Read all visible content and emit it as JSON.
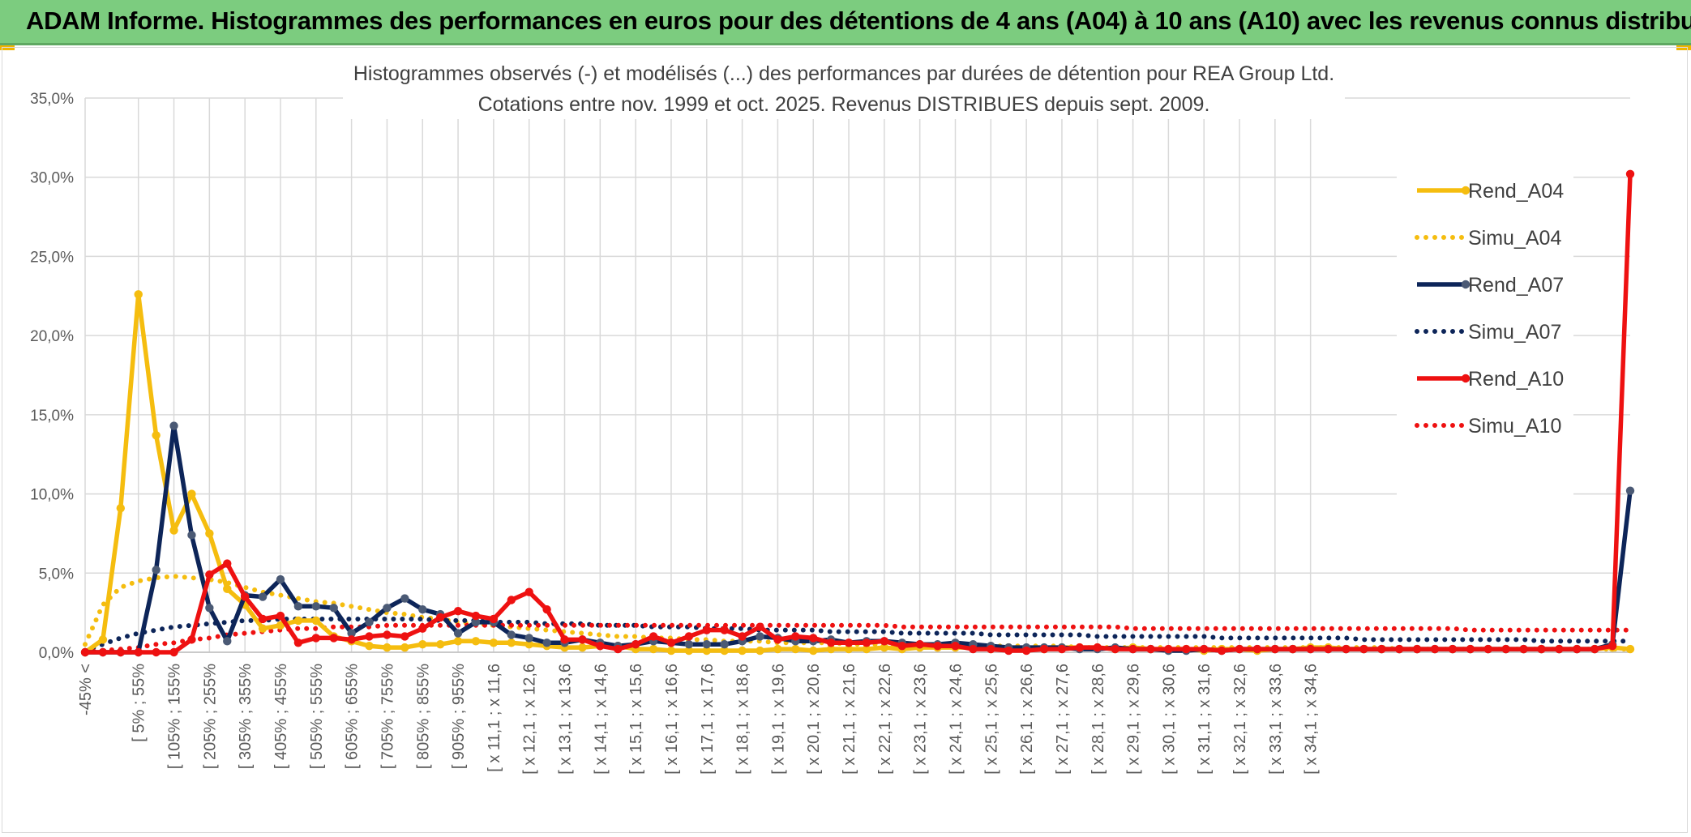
{
  "banner": {
    "title": "ADAM Informe. Histogrammes des performances en euros pour des détentions de 4 ans (A04) à 10 ans (A10) avec les revenus connus distribués"
  },
  "colors": {
    "banner_bg": "#7ccc7f",
    "yellow": "#f5bd0f",
    "navy": "#0d2559",
    "navy_marker": "#4b5a75",
    "red": "#ee1111",
    "grid": "#d9d9d9",
    "axis_text": "#595959"
  },
  "chart_data": {
    "type": "line",
    "title": "Histogrammes observés (-) et modélisés (...) des performances par durées de détention pour REA Group Ltd.",
    "subtitle": "Cotations entre nov. 1999 et oct. 2025. Revenus DISTRIBUES depuis sept. 2009.",
    "ylim": [
      0,
      0.35
    ],
    "yticks": [
      0,
      0.05,
      0.1,
      0.15,
      0.2,
      0.25,
      0.3,
      0.35
    ],
    "ytick_labels": [
      "0,0%",
      "5,0%",
      "10,0%",
      "15,0%",
      "20,0%",
      "25,0%",
      "30,0%",
      "35,0%"
    ],
    "n_points": 88,
    "grid": true,
    "legend_position": "right",
    "x_tick_labels": [
      {
        "i": 0,
        "label": "-45% <"
      },
      {
        "i": 3,
        "label": "[ 5% ; 55%"
      },
      {
        "i": 5,
        "label": "[ 105% ; 155%"
      },
      {
        "i": 7,
        "label": "[ 205% ; 255%"
      },
      {
        "i": 9,
        "label": "[ 305% ; 355%"
      },
      {
        "i": 11,
        "label": "[ 405% ; 455%"
      },
      {
        "i": 13,
        "label": "[ 505% ; 555%"
      },
      {
        "i": 15,
        "label": "[ 605% ; 655%"
      },
      {
        "i": 17,
        "label": "[ 705% ; 755%"
      },
      {
        "i": 19,
        "label": "[ 805% ; 855%"
      },
      {
        "i": 21,
        "label": "[ 905% ; 955%"
      },
      {
        "i": 23,
        "label": "[ x 11,1 ; x 11,6"
      },
      {
        "i": 25,
        "label": "[ x 12,1 ; x 12,6"
      },
      {
        "i": 27,
        "label": "[ x 13,1 ; x 13,6"
      },
      {
        "i": 29,
        "label": "[ x 14,1 ; x 14,6"
      },
      {
        "i": 31,
        "label": "[ x 15,1 ; x 15,6"
      },
      {
        "i": 33,
        "label": "[ x 16,1 ; x 16,6"
      },
      {
        "i": 35,
        "label": "[ x 17,1 ; x 17,6"
      },
      {
        "i": 37,
        "label": "[ x 18,1 ; x 18,6"
      },
      {
        "i": 39,
        "label": "[ x 19,1 ; x 19,6"
      },
      {
        "i": 41,
        "label": "[ x 20,1 ; x 20,6"
      },
      {
        "i": 43,
        "label": "[ x 21,1 ; x 21,6"
      },
      {
        "i": 45,
        "label": "[ x 22,1 ; x 22,6"
      },
      {
        "i": 47,
        "label": "[ x 23,1 ; x 23,6"
      },
      {
        "i": 49,
        "label": "[ x 24,1 ; x 24,6"
      },
      {
        "i": 51,
        "label": "[ x 25,1 ; x 25,6"
      },
      {
        "i": 53,
        "label": "[ x 26,1 ; x 26,6"
      },
      {
        "i": 55,
        "label": "[ x 27,1 ; x 27,6"
      },
      {
        "i": 57,
        "label": "[ x 28,1 ; x 28,6"
      },
      {
        "i": 59,
        "label": "[ x 29,1 ; x 29,6"
      },
      {
        "i": 61,
        "label": "[ x 30,1 ; x 30,6"
      },
      {
        "i": 63,
        "label": "[ x 31,1 ; x 31,6"
      },
      {
        "i": 65,
        "label": "[ x 32,1 ; x 32,6"
      },
      {
        "i": 67,
        "label": "[ x 33,1 ; x 33,6"
      },
      {
        "i": 69,
        "label": "[ x 34,1 ; x 34,6"
      }
    ],
    "series": [
      {
        "name": "Rend_A04",
        "style": "solid",
        "color": "#f5bd0f",
        "values": [
          0.0,
          0.008,
          0.091,
          0.226,
          0.137,
          0.077,
          0.1,
          0.075,
          0.04,
          0.03,
          0.015,
          0.017,
          0.02,
          0.02,
          0.01,
          0.007,
          0.004,
          0.003,
          0.003,
          0.005,
          0.005,
          0.007,
          0.007,
          0.006,
          0.006,
          0.005,
          0.004,
          0.003,
          0.003,
          0.004,
          0.004,
          0.002,
          0.002,
          0.001,
          0.001,
          0.001,
          0.001,
          0.001,
          0.001,
          0.002,
          0.002,
          0.001,
          0.002,
          0.002,
          0.002,
          0.003,
          0.002,
          0.003,
          0.003,
          0.003,
          0.003,
          0.002,
          0.003,
          0.002,
          0.002,
          0.003,
          0.003,
          0.003,
          0.002,
          0.003,
          0.002,
          0.002,
          0.002,
          0.001,
          0.002,
          0.002,
          0.001,
          0.002,
          0.002,
          0.003,
          0.003,
          0.002,
          0.002,
          0.002,
          0.002,
          0.002,
          0.002,
          0.002,
          0.002,
          0.002,
          0.002,
          0.002,
          0.002,
          0.002,
          0.002,
          0.002,
          0.003,
          0.002
        ]
      },
      {
        "name": "Simu_A04",
        "style": "dotted",
        "color": "#f5bd0f",
        "values": [
          0.005,
          0.03,
          0.041,
          0.045,
          0.047,
          0.048,
          0.047,
          0.046,
          0.044,
          0.041,
          0.038,
          0.036,
          0.034,
          0.032,
          0.031,
          0.029,
          0.027,
          0.025,
          0.024,
          0.022,
          0.021,
          0.019,
          0.018,
          0.017,
          0.016,
          0.015,
          0.014,
          0.013,
          0.012,
          0.011,
          0.01,
          0.01,
          0.009,
          0.009,
          0.008,
          0.008,
          0.007,
          0.007,
          0.007,
          0.006,
          0.006,
          0.006,
          0.006,
          0.005,
          0.005,
          0.005,
          0.005,
          0.005,
          0.004,
          0.004,
          0.004,
          0.004,
          0.004,
          0.004,
          0.004,
          0.004,
          0.003,
          0.003,
          0.003,
          0.003,
          0.003,
          0.003,
          0.003,
          0.003,
          0.003,
          0.003,
          0.003,
          0.003,
          0.003,
          0.003,
          0.003,
          0.003,
          0.003,
          0.003,
          0.002,
          0.002,
          0.002,
          0.002,
          0.002,
          0.002,
          0.002,
          0.002,
          0.002,
          0.002,
          0.002,
          0.002,
          0.002,
          0.002
        ]
      },
      {
        "name": "Rend_A07",
        "style": "solid",
        "color": "#0d2559",
        "values": [
          0.0,
          0.0,
          0.0,
          0.0,
          0.052,
          0.143,
          0.074,
          0.028,
          0.007,
          0.036,
          0.035,
          0.046,
          0.029,
          0.029,
          0.028,
          0.012,
          0.019,
          0.028,
          0.034,
          0.027,
          0.024,
          0.012,
          0.019,
          0.019,
          0.011,
          0.009,
          0.006,
          0.006,
          0.008,
          0.006,
          0.004,
          0.005,
          0.007,
          0.006,
          0.005,
          0.005,
          0.005,
          0.007,
          0.01,
          0.009,
          0.007,
          0.007,
          0.008,
          0.006,
          0.007,
          0.007,
          0.006,
          0.005,
          0.005,
          0.006,
          0.005,
          0.004,
          0.003,
          0.003,
          0.003,
          0.003,
          0.002,
          0.002,
          0.003,
          0.002,
          0.002,
          0.001,
          0.001,
          0.002,
          0.001,
          0.002,
          0.002,
          0.002,
          0.002,
          0.002,
          0.002,
          0.002,
          0.002,
          0.002,
          0.002,
          0.002,
          0.002,
          0.002,
          0.002,
          0.002,
          0.002,
          0.002,
          0.002,
          0.002,
          0.002,
          0.002,
          0.005,
          0.102
        ]
      },
      {
        "name": "Simu_A07",
        "style": "dotted",
        "color": "#0d2559",
        "values": [
          0.001,
          0.005,
          0.009,
          0.012,
          0.014,
          0.016,
          0.017,
          0.018,
          0.019,
          0.02,
          0.02,
          0.021,
          0.021,
          0.021,
          0.021,
          0.021,
          0.021,
          0.021,
          0.021,
          0.021,
          0.02,
          0.02,
          0.02,
          0.019,
          0.019,
          0.019,
          0.018,
          0.018,
          0.018,
          0.017,
          0.017,
          0.017,
          0.016,
          0.016,
          0.016,
          0.015,
          0.015,
          0.015,
          0.014,
          0.014,
          0.014,
          0.014,
          0.013,
          0.013,
          0.013,
          0.013,
          0.012,
          0.012,
          0.012,
          0.012,
          0.012,
          0.011,
          0.011,
          0.011,
          0.011,
          0.011,
          0.011,
          0.01,
          0.01,
          0.01,
          0.01,
          0.01,
          0.01,
          0.01,
          0.009,
          0.009,
          0.009,
          0.009,
          0.009,
          0.009,
          0.009,
          0.009,
          0.008,
          0.008,
          0.008,
          0.008,
          0.008,
          0.008,
          0.008,
          0.008,
          0.008,
          0.008,
          0.007,
          0.007,
          0.007,
          0.007,
          0.007,
          0.007
        ]
      },
      {
        "name": "Rend_A10",
        "style": "solid",
        "color": "#ee1111",
        "values": [
          0.0,
          0.0,
          0.0,
          0.0,
          0.0,
          0.0,
          0.008,
          0.049,
          0.056,
          0.035,
          0.021,
          0.023,
          0.006,
          0.009,
          0.009,
          0.008,
          0.01,
          0.011,
          0.01,
          0.015,
          0.022,
          0.026,
          0.023,
          0.021,
          0.033,
          0.038,
          0.027,
          0.008,
          0.008,
          0.004,
          0.002,
          0.005,
          0.01,
          0.006,
          0.01,
          0.014,
          0.014,
          0.01,
          0.016,
          0.008,
          0.01,
          0.009,
          0.006,
          0.006,
          0.006,
          0.007,
          0.004,
          0.005,
          0.004,
          0.004,
          0.002,
          0.002,
          0.001,
          0.001,
          0.002,
          0.002,
          0.003,
          0.003,
          0.002,
          0.002,
          0.002,
          0.002,
          0.002,
          0.002,
          0.001,
          0.002,
          0.002,
          0.002,
          0.002,
          0.002,
          0.002,
          0.002,
          0.002,
          0.002,
          0.002,
          0.002,
          0.002,
          0.002,
          0.002,
          0.002,
          0.002,
          0.002,
          0.002,
          0.002,
          0.002,
          0.002,
          0.004,
          0.302
        ]
      },
      {
        "name": "Simu_A10",
        "style": "dotted",
        "color": "#ee1111",
        "values": [
          0.0,
          0.001,
          0.002,
          0.003,
          0.005,
          0.006,
          0.008,
          0.009,
          0.011,
          0.012,
          0.013,
          0.014,
          0.015,
          0.015,
          0.016,
          0.016,
          0.016,
          0.017,
          0.017,
          0.017,
          0.017,
          0.017,
          0.017,
          0.017,
          0.017,
          0.017,
          0.017,
          0.017,
          0.017,
          0.017,
          0.017,
          0.017,
          0.017,
          0.017,
          0.017,
          0.017,
          0.017,
          0.017,
          0.017,
          0.017,
          0.017,
          0.017,
          0.017,
          0.017,
          0.017,
          0.017,
          0.016,
          0.016,
          0.016,
          0.016,
          0.016,
          0.016,
          0.016,
          0.016,
          0.016,
          0.016,
          0.016,
          0.016,
          0.016,
          0.015,
          0.015,
          0.015,
          0.015,
          0.015,
          0.015,
          0.015,
          0.015,
          0.015,
          0.015,
          0.015,
          0.015,
          0.015,
          0.015,
          0.015,
          0.015,
          0.015,
          0.015,
          0.015,
          0.014,
          0.014,
          0.014,
          0.014,
          0.014,
          0.014,
          0.014,
          0.014,
          0.014,
          0.014
        ]
      }
    ]
  }
}
